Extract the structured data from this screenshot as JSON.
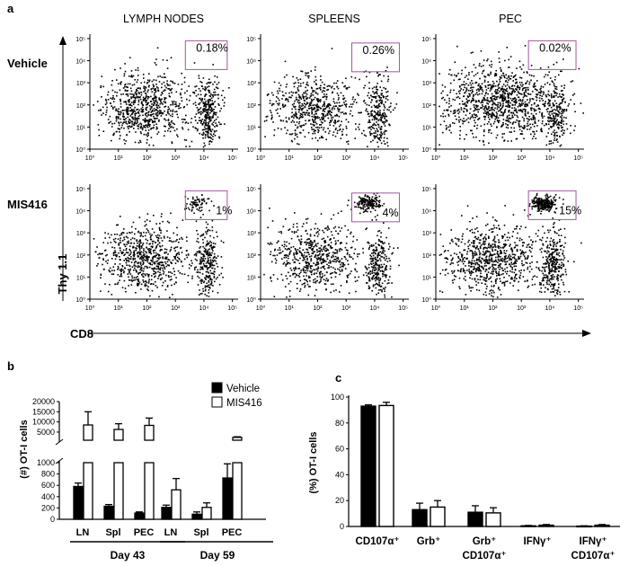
{
  "panel_a": {
    "letter": "a",
    "columns": [
      "LYMPH NODES",
      "SPLEENS",
      "PEC"
    ],
    "rows": [
      "Vehicle",
      "MIS416"
    ],
    "gate_percents": [
      [
        "0.18%",
        "0.26%",
        "0.02%"
      ],
      [
        "1%",
        "4%",
        "15%"
      ]
    ],
    "y_label": "Thy 1.1",
    "x_label": "CD8",
    "y_ticks": [
      "10⁰",
      "10¹",
      "10²",
      "10³",
      "10⁴",
      "10⁵"
    ],
    "x_ticks": [
      "10⁰",
      "10¹",
      "10²",
      "10³",
      "10⁴",
      "10⁵"
    ],
    "gate_color": "#a0569a"
  },
  "chart_data": [
    {
      "type": "bar",
      "panel": "b",
      "ylabel": "(#) OT-I cells",
      "ylim_lower": [
        0,
        1000
      ],
      "ylim_upper": [
        1000,
        20000
      ],
      "yticks_lower": [
        "0",
        "200",
        "400",
        "600",
        "800",
        "1000"
      ],
      "yticks_upper": [
        "5000",
        "10000",
        "15000",
        "20000"
      ],
      "categories": [
        "LN",
        "Spl",
        "PEC",
        "LN",
        "Spl",
        "PEC"
      ],
      "groups": [
        "Day 43",
        "Day 59"
      ],
      "legend_position": "top-right",
      "series": [
        {
          "name": "Vehicle",
          "color": "#000000",
          "values": [
            580,
            230,
            110,
            210,
            90,
            730
          ],
          "errors": [
            60,
            30,
            20,
            40,
            40,
            250
          ]
        },
        {
          "name": "MIS416",
          "color": "#ffffff",
          "values": [
            8500,
            6300,
            8300,
            520,
            210,
            2400
          ],
          "errors": [
            6500,
            2800,
            3600,
            200,
            80,
            300
          ]
        }
      ]
    },
    {
      "type": "bar",
      "panel": "c",
      "ylabel": "(%) OT-I cells",
      "ylim": [
        0,
        100
      ],
      "yticks": [
        "0",
        "20",
        "40",
        "60",
        "80",
        "100"
      ],
      "categories": [
        {
          "line1": "CD107α⁺",
          "line2": ""
        },
        {
          "line1": "Grb⁺",
          "line2": ""
        },
        {
          "line1": "Grb⁺",
          "line2": "CD107α⁺"
        },
        {
          "line1": "IFNγ⁺",
          "line2": ""
        },
        {
          "line1": "IFNγ⁺",
          "line2": "CD107α⁺"
        }
      ],
      "series": [
        {
          "color": "#000000",
          "values": [
            93,
            13,
            11,
            0.5,
            0.3
          ],
          "errors": [
            1,
            5,
            5,
            0.3,
            0.2
          ]
        },
        {
          "color": "#ffffff",
          "values": [
            93.5,
            15,
            10.5,
            1,
            1
          ],
          "errors": [
            2.5,
            5,
            4,
            0.5,
            0.5
          ]
        }
      ]
    }
  ],
  "panel_b": {
    "letter": "b"
  },
  "panel_c": {
    "letter": "c"
  }
}
